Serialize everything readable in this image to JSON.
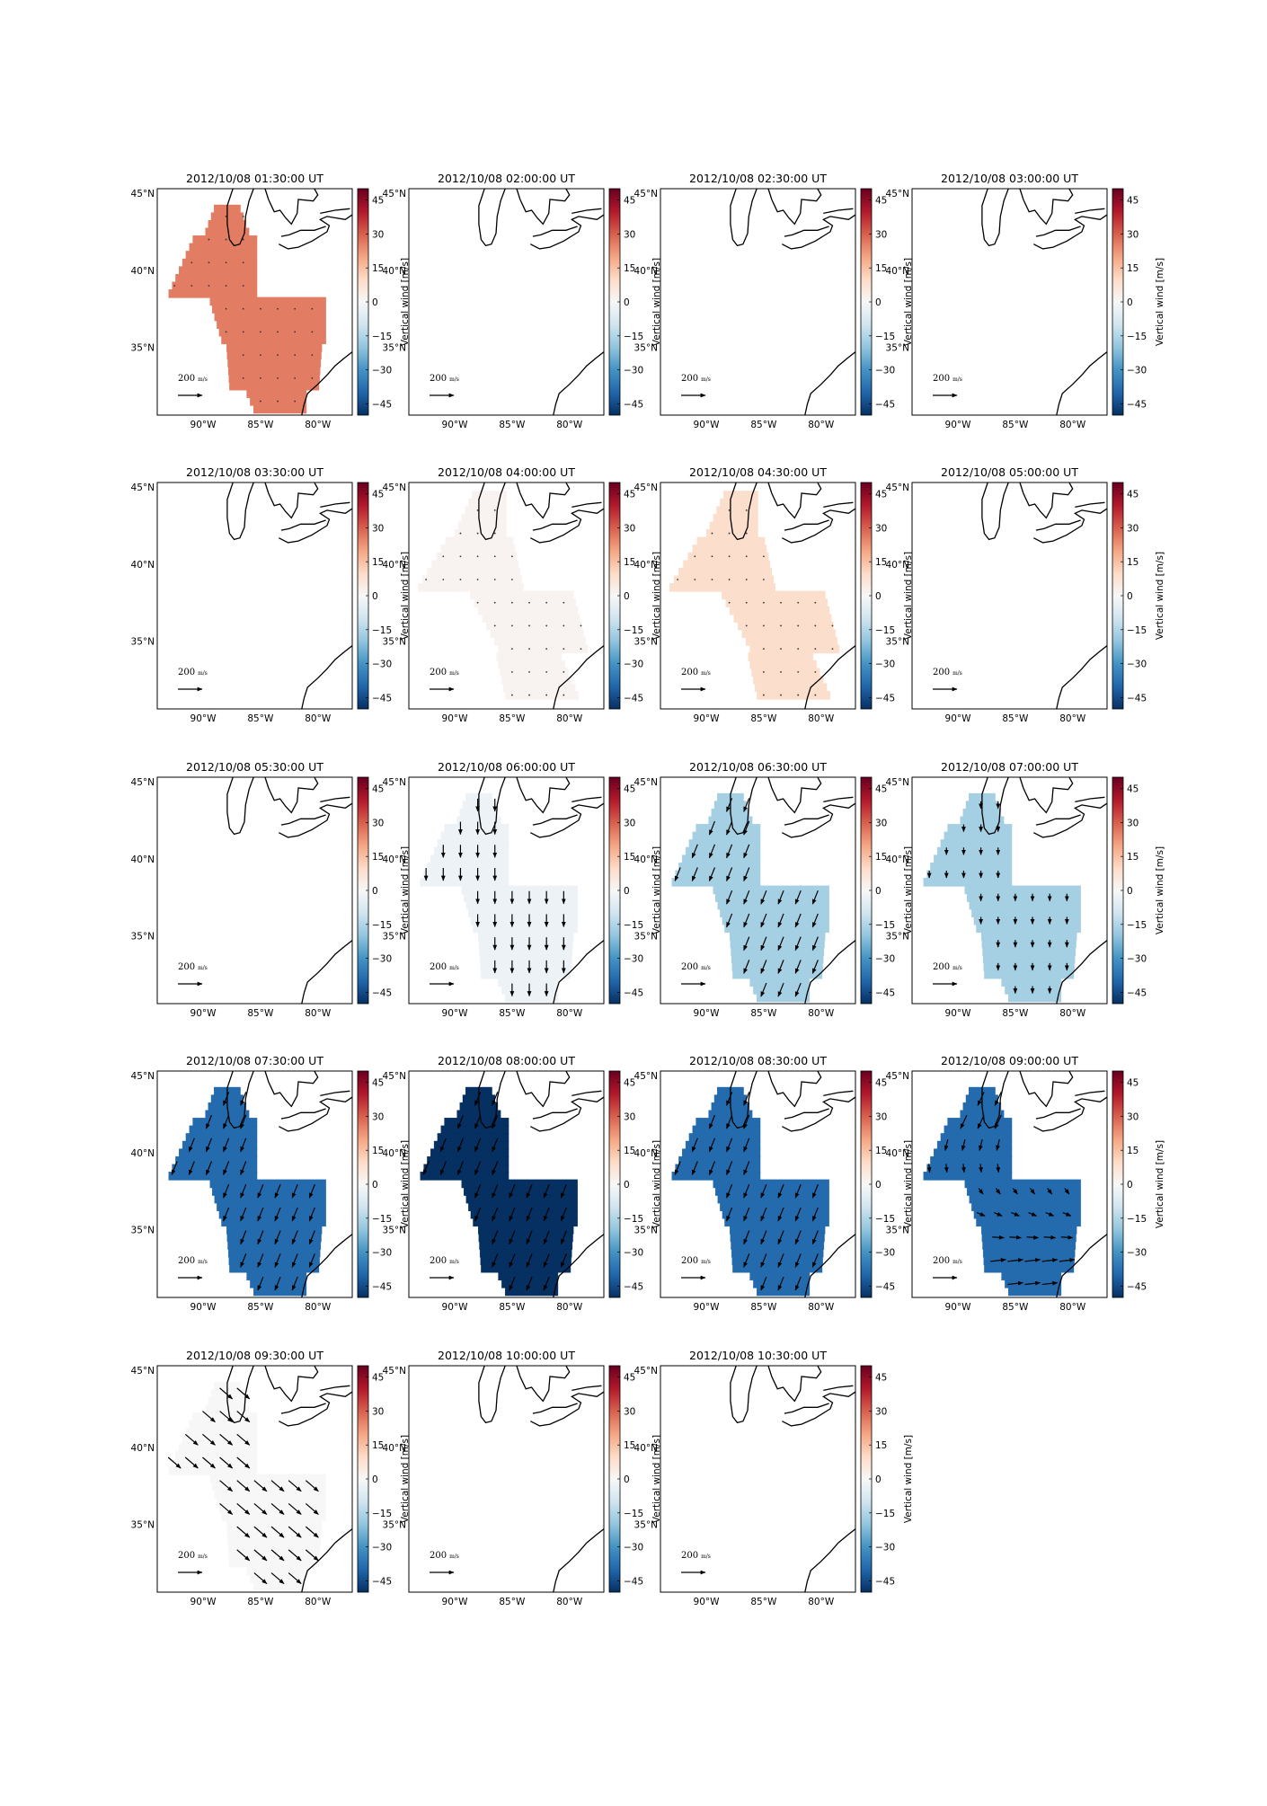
{
  "figure": {
    "colorbar": {
      "label": "Vertical wind [m/s]",
      "ticks": [
        "45",
        "30",
        "15",
        "0",
        "−15",
        "−30",
        "−45"
      ],
      "range": [
        -50,
        50
      ],
      "colormap": "RdBu_r"
    },
    "axes": {
      "lat_ticks": [
        "45°N",
        "40°N",
        "35°N"
      ],
      "lon_ticks": [
        "90°W",
        "85°W",
        "80°W"
      ],
      "lon_range": [
        -94,
        -77
      ],
      "lat_range": [
        30.6,
        45.3
      ]
    },
    "scale": {
      "value": "200",
      "unit": "m/s"
    },
    "panels": [
      {
        "title": "2012/10/08 01:30:00 UT",
        "shape": "A",
        "vertical_wind": 26,
        "wind": "dots"
      },
      {
        "title": "2012/10/08 02:00:00 UT",
        "shape": "none",
        "vertical_wind": null,
        "wind": "none"
      },
      {
        "title": "2012/10/08 02:30:00 UT",
        "shape": "none",
        "vertical_wind": null,
        "wind": "none"
      },
      {
        "title": "2012/10/08 03:00:00 UT",
        "shape": "none",
        "vertical_wind": null,
        "wind": "none"
      },
      {
        "title": "2012/10/08 03:30:00 UT",
        "shape": "none",
        "vertical_wind": null,
        "wind": "none"
      },
      {
        "title": "2012/10/08 04:00:00 UT",
        "shape": "B",
        "vertical_wind": 1.5,
        "wind": "dots"
      },
      {
        "title": "2012/10/08 04:30:00 UT",
        "shape": "B",
        "vertical_wind": 9,
        "wind": "dots"
      },
      {
        "title": "2012/10/08 05:00:00 UT",
        "shape": "none",
        "vertical_wind": null,
        "wind": "none"
      },
      {
        "title": "2012/10/08 05:30:00 UT",
        "shape": "none",
        "vertical_wind": null,
        "wind": "none"
      },
      {
        "title": "2012/10/08 06:00:00 UT",
        "shape": "A",
        "vertical_wind": -3,
        "wind": "south"
      },
      {
        "title": "2012/10/08 06:30:00 UT",
        "shape": "A",
        "vertical_wind": -17,
        "wind": "sw"
      },
      {
        "title": "2012/10/08 07:00:00 UT",
        "shape": "A",
        "vertical_wind": -17,
        "wind": "south_small"
      },
      {
        "title": "2012/10/08 07:30:00 UT",
        "shape": "A",
        "vertical_wind": -39,
        "wind": "sw"
      },
      {
        "title": "2012/10/08 08:00:00 UT",
        "shape": "A",
        "vertical_wind": -50,
        "wind": "sw"
      },
      {
        "title": "2012/10/08 08:30:00 UT",
        "shape": "A",
        "vertical_wind": -39,
        "wind": "sw"
      },
      {
        "title": "2012/10/08 09:00:00 UT",
        "shape": "A",
        "vertical_wind": -39,
        "wind": "rotating"
      },
      {
        "title": "2012/10/08 09:30:00 UT",
        "shape": "A",
        "vertical_wind": 0,
        "wind": "se"
      },
      {
        "title": "2012/10/08 10:00:00 UT",
        "shape": "none",
        "vertical_wind": null,
        "wind": "none"
      },
      {
        "title": "2012/10/08 10:30:00 UT",
        "shape": "none",
        "vertical_wind": null,
        "wind": "none"
      }
    ]
  }
}
